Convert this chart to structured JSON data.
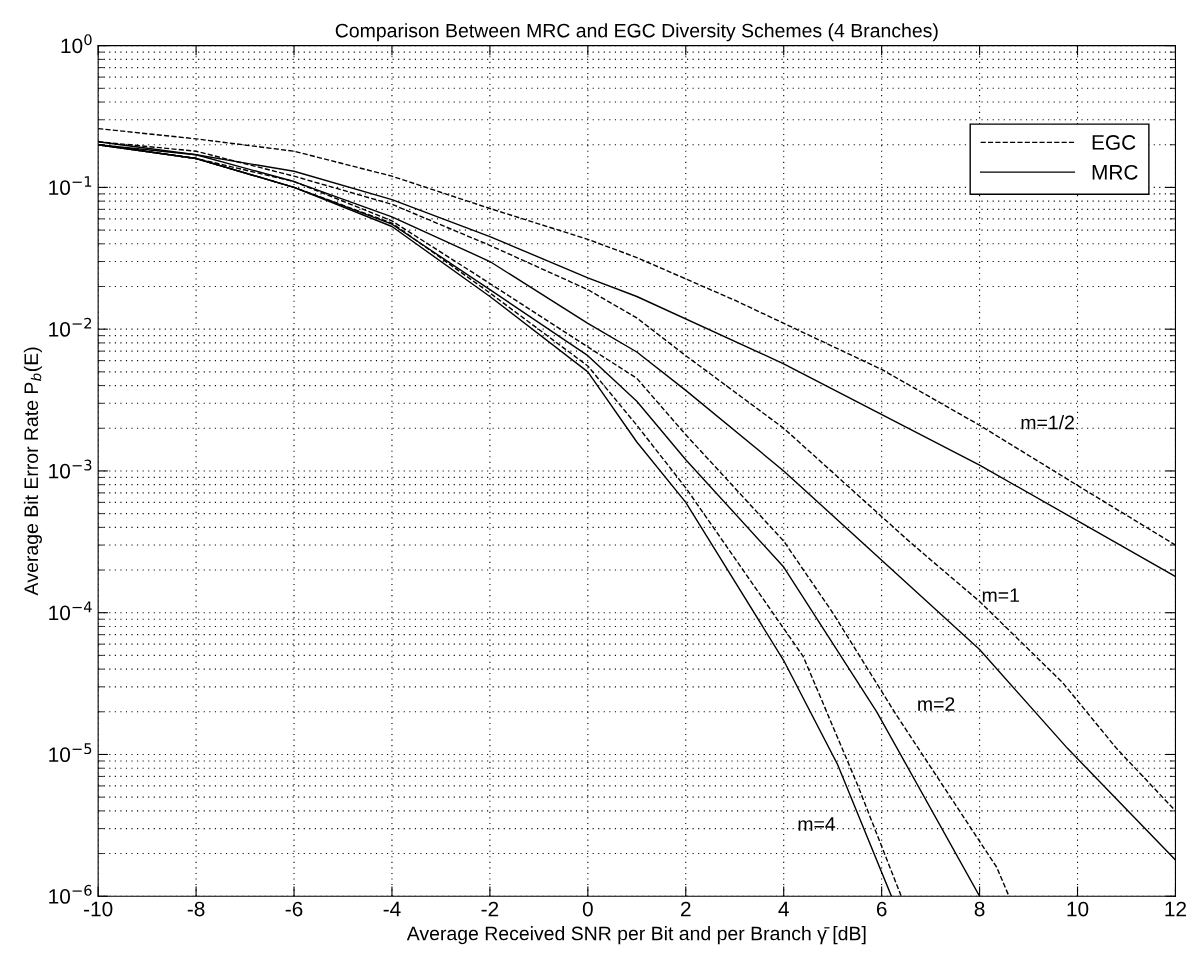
{
  "chart_data": {
    "type": "line",
    "title": "Comparison Between MRC and EGC Diversity Schemes (4 Branches)",
    "xlabel": "Average Received SNR per Bit and per Branch γ̄ [dB]",
    "ylabel": "Average Bit Error Rate P$_{b}$(E)",
    "log": "y",
    "grid": true,
    "legend": "top right",
    "marker": "none",
    "xlim": [
      -10,
      12
    ],
    "xticks": [
      -10,
      -8,
      -6,
      -4,
      -2,
      0,
      2,
      4,
      6,
      8,
      10,
      12
    ],
    "ylim": [
      1e-06,
      1
    ],
    "yticks": [
      {
        "value": 1e-06,
        "label": "10$^{−6}$"
      },
      {
        "value": 1e-05,
        "label": "10$^{−5}$"
      },
      {
        "value": 0.0001,
        "label": "10$^{−4}$"
      },
      {
        "value": 0.001,
        "label": "10$^{−3}$"
      },
      {
        "value": 0.01,
        "label": "10$^{−2}$"
      },
      {
        "value": 0.1,
        "label": "10$^{−1}$"
      },
      {
        "value": 1,
        "label": "10$^{0}$"
      }
    ],
    "series": [
      {
        "name": "EGC",
        "color": "#000000",
        "line_style": "dashed",
        "x": [
          -10,
          -8,
          -6,
          -4,
          -2,
          0,
          1,
          3,
          6,
          8,
          10,
          12
        ],
        "values": [
          0.26,
          0.22,
          0.18,
          0.12,
          0.071,
          0.043,
          0.032,
          0.016,
          0.0052,
          0.0021,
          0.00079,
          0.0003
        ]
      },
      {
        "name": "MRC",
        "color": "#000000",
        "line_style": "solid",
        "x": [
          -10,
          -8,
          -6,
          -4,
          -2,
          0,
          1,
          4,
          8,
          12
        ],
        "values": [
          0.21,
          0.17,
          0.13,
          0.082,
          0.045,
          0.023,
          0.017,
          0.0057,
          0.0011,
          0.00018
        ]
      },
      {
        "color": "#000000",
        "line_style": "dashed",
        "x": [
          -10,
          -8,
          -6,
          -4,
          -2,
          0,
          1,
          2,
          4,
          6.6,
          8,
          9.7,
          10.8,
          12
        ],
        "values": [
          0.21,
          0.18,
          0.12,
          0.076,
          0.039,
          0.019,
          0.012,
          0.0065,
          0.002,
          0.00031,
          0.00012,
          3.2e-05,
          1.1e-05,
          4e-06
        ]
      },
      {
        "color": "#000000",
        "line_style": "solid",
        "x": [
          -10,
          -8,
          -6,
          -4,
          -2,
          0,
          1,
          2,
          4,
          8,
          9.8,
          12
        ],
        "values": [
          0.2,
          0.17,
          0.11,
          0.062,
          0.03,
          0.011,
          0.0069,
          0.0037,
          0.001,
          5.5e-05,
          1.1e-05,
          1.8e-06
        ]
      },
      {
        "color": "#000000",
        "line_style": "dashed",
        "x": [
          -10,
          -8,
          -6,
          -4,
          -2,
          0,
          1,
          2,
          4,
          5,
          6.3,
          8.35,
          8.6
        ],
        "values": [
          0.2,
          0.16,
          0.11,
          0.058,
          0.021,
          0.0075,
          0.0045,
          0.0018,
          0.00032,
          0.0001,
          1.9e-05,
          1.6e-06,
          1e-06
        ]
      },
      {
        "color": "#000000",
        "line_style": "solid",
        "x": [
          -10,
          -8,
          -6,
          -4,
          -2,
          0,
          1,
          2,
          4,
          5.9,
          8
        ],
        "values": [
          0.2,
          0.16,
          0.1,
          0.055,
          0.019,
          0.0065,
          0.0031,
          0.0012,
          0.00021,
          2e-05,
          1e-06
        ]
      },
      {
        "color": "#000000",
        "line_style": "dashed",
        "x": [
          -10,
          -8,
          -6,
          -4,
          -2,
          0,
          1,
          2,
          4.4,
          5.5,
          6.4
        ],
        "values": [
          0.2,
          0.16,
          0.1,
          0.056,
          0.018,
          0.0055,
          0.0021,
          0.00076,
          4.9e-05,
          6.2e-06,
          1e-06
        ]
      },
      {
        "color": "#000000",
        "line_style": "solid",
        "x": [
          -10,
          -8,
          -6,
          -4,
          -2,
          0,
          1,
          2,
          4,
          5.1,
          6.2
        ],
        "values": [
          0.2,
          0.16,
          0.1,
          0.053,
          0.017,
          0.005,
          0.0016,
          0.0006,
          4.6e-05,
          8.5e-06,
          1e-06
        ]
      }
    ],
    "annotations": [
      "m=1/2",
      "m=1",
      "m=2",
      "m=4"
    ]
  }
}
